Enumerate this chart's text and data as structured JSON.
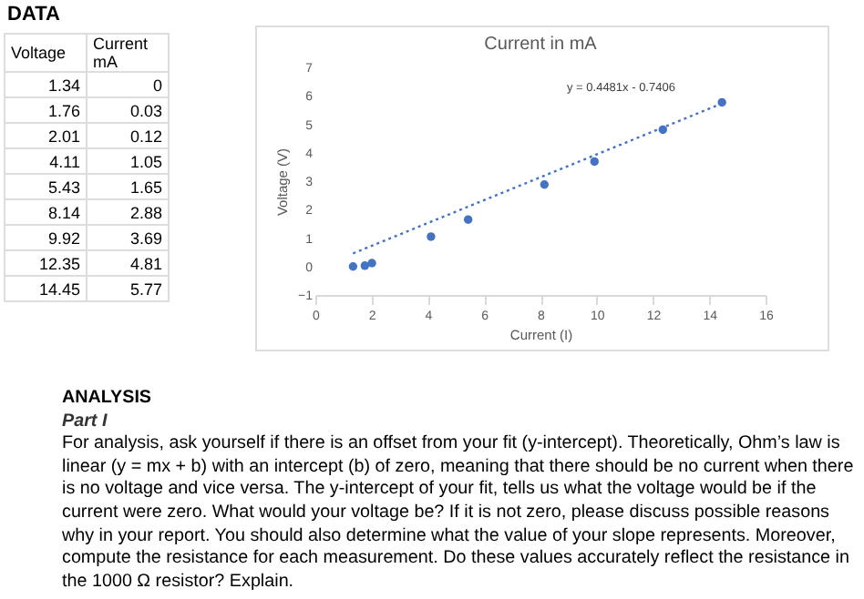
{
  "chart_data": [
    {
      "type": "other",
      "title": "DATA",
      "annotations": [
        "Voltage",
        "Current mA",
        "1.34",
        "0",
        "1.76",
        "0.03",
        "2.01",
        "0.12",
        "4.11",
        "1.05",
        "5.43",
        "1.65",
        "8.14",
        "2.88",
        "9.92",
        "3.69",
        "12.35",
        "4.81",
        "14.45",
        "5.77"
      ]
    },
    {
      "type": "scatter",
      "title": "Current in mA",
      "xlabel": "Current (I)",
      "ylabel": "Voltage (V)",
      "x": [
        1.34,
        1.76,
        2.01,
        4.11,
        5.43,
        8.14,
        9.92,
        12.35,
        14.45
      ],
      "series": [
        {
          "type": "scatter",
          "color": "#4472c4",
          "marker": "circle",
          "values": [
            0,
            0.03,
            0.12,
            1.05,
            1.65,
            2.88,
            3.69,
            4.81,
            5.77
          ]
        },
        {
          "type": "line",
          "color": "#4472c4",
          "line_style": "dotted",
          "x": [
            1.34,
            14.45
          ],
          "values": [
            0.46,
            5.73
          ]
        }
      ],
      "xlim": [
        0,
        16
      ],
      "xticks": [
        0,
        2,
        4,
        6,
        8,
        10,
        12,
        14,
        16
      ],
      "ylim": [
        -1,
        7
      ],
      "yticks": [
        -1,
        0,
        1,
        2,
        3,
        4,
        5,
        6,
        7
      ],
      "annotations": [
        "y = 0.4481x - 0.7406",
        "ANALYSIS",
        "Part I",
        "For analysis, ask yourself if there is an offset from your fit (y-intercept). Theoretically, Ohm’s law is linear (y = mx + b) with an intercept (b) of zero, meaning that there should be no current when there is no voltage and vice versa. The y-intercept of your fit, tells us what the voltage would be if the current were zero. What would your voltage be? If it is not zero, please discuss possible reasons why in your report. You should also determine what the value of your slope represents. Moreover, compute the resistance for each measurement. Do these values accurately reflect the resistance in the 1000 Ω resistor? Explain."
      ]
    }
  ]
}
